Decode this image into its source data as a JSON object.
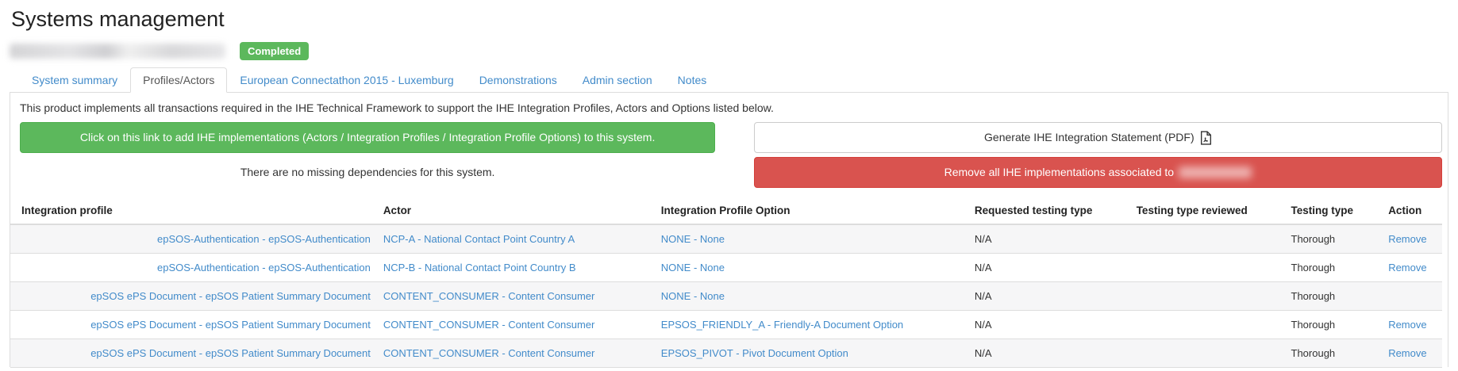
{
  "page_title": "Systems management",
  "system": {
    "name_redacted": true,
    "status_badge": "Completed"
  },
  "tabs": [
    {
      "label": "System summary",
      "active": false
    },
    {
      "label": "Profiles/Actors",
      "active": true
    },
    {
      "label": "European Connectathon 2015 - Luxemburg",
      "active": false
    },
    {
      "label": "Demonstrations",
      "active": false
    },
    {
      "label": "Admin section",
      "active": false
    },
    {
      "label": "Notes",
      "active": false
    }
  ],
  "content": {
    "intro_text": "This product implements all transactions required in the IHE Technical Framework to support the IHE Integration Profiles, Actors and Options listed below.",
    "add_implementations_button": "Click on this link to add IHE implementations (Actors / Integration Profiles / Integration Profile Options) to this system.",
    "no_missing_dependencies_text": "There are no missing dependencies for this system.",
    "generate_statement_button": "Generate IHE Integration Statement (PDF)",
    "remove_all_button_prefix": "Remove all IHE implementations associated to"
  },
  "table": {
    "columns": [
      "Integration profile",
      "Actor",
      "Integration Profile Option",
      "Requested testing type",
      "Testing type reviewed",
      "Testing type",
      "Action"
    ],
    "rows": [
      {
        "profile": "epSOS-Authentication - epSOS-Authentication",
        "actor": "NCP-A - National Contact Point Country A",
        "option": "NONE - None",
        "requested_testing_type": "N/A",
        "testing_type_reviewed": "",
        "testing_type": "Thorough",
        "action": "Remove"
      },
      {
        "profile": "epSOS-Authentication - epSOS-Authentication",
        "actor": "NCP-B - National Contact Point Country B",
        "option": "NONE - None",
        "requested_testing_type": "N/A",
        "testing_type_reviewed": "",
        "testing_type": "Thorough",
        "action": "Remove"
      },
      {
        "profile": "epSOS ePS Document - epSOS Patient Summary Document",
        "actor": "CONTENT_CONSUMER - Content Consumer",
        "option": "NONE - None",
        "requested_testing_type": "N/A",
        "testing_type_reviewed": "",
        "testing_type": "Thorough",
        "action": ""
      },
      {
        "profile": "epSOS ePS Document - epSOS Patient Summary Document",
        "actor": "CONTENT_CONSUMER - Content Consumer",
        "option": "EPSOS_FRIENDLY_A - Friendly-A Document Option",
        "requested_testing_type": "N/A",
        "testing_type_reviewed": "",
        "testing_type": "Thorough",
        "action": "Remove"
      },
      {
        "profile": "epSOS ePS Document - epSOS Patient Summary Document",
        "actor": "CONTENT_CONSUMER - Content Consumer",
        "option": "EPSOS_PIVOT - Pivot Document Option",
        "requested_testing_type": "N/A",
        "testing_type_reviewed": "",
        "testing_type": "Thorough",
        "action": "Remove"
      }
    ]
  },
  "icons": {
    "pdf_icon": "pdf-file-outline"
  },
  "colors": {
    "link_blue": "#428bca",
    "success_green": "#5cb85c",
    "success_border": "#4cae4c",
    "danger_red": "#d9534f",
    "danger_border": "#d43f3a",
    "badge_green": "#5cb85c",
    "table_border": "#dddddd",
    "stripe_background": "#f6f6f7"
  }
}
